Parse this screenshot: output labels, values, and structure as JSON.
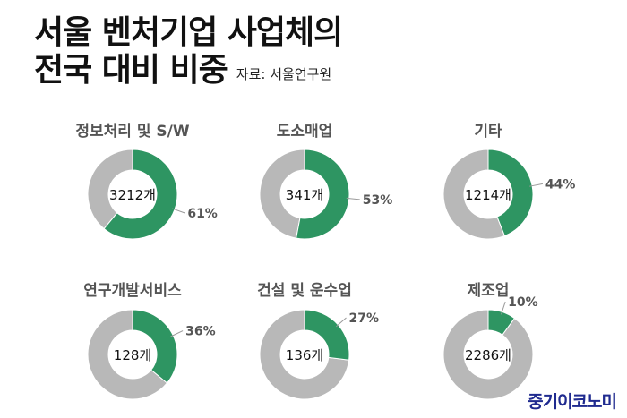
{
  "header": {
    "title_line1": "서울 벤처기업 사업체의",
    "title_line2": "전국 대비 비중",
    "source": "자료: 서울연구원"
  },
  "brand": "중기이코노미",
  "colors": {
    "share": "#2e9562",
    "rest": "#b8b8b8",
    "ring_border": "#ffffff",
    "label": "#555555"
  },
  "chart_data": [
    {
      "type": "pie",
      "title": "정보처리 및 S/W",
      "center_label": "3212개",
      "percent_label": "61%",
      "value": 61
    },
    {
      "type": "pie",
      "title": "도소매업",
      "center_label": "341개",
      "percent_label": "53%",
      "value": 53
    },
    {
      "type": "pie",
      "title": "기타",
      "center_label": "1214개",
      "percent_label": "44%",
      "value": 44
    },
    {
      "type": "pie",
      "title": "연구개발서비스",
      "center_label": "128개",
      "percent_label": "36%",
      "value": 36
    },
    {
      "type": "pie",
      "title": "건설 및 운수업",
      "center_label": "136개",
      "percent_label": "27%",
      "value": 27
    },
    {
      "type": "pie",
      "title": "제조업",
      "center_label": "2286개",
      "percent_label": "10%",
      "value": 10
    }
  ]
}
